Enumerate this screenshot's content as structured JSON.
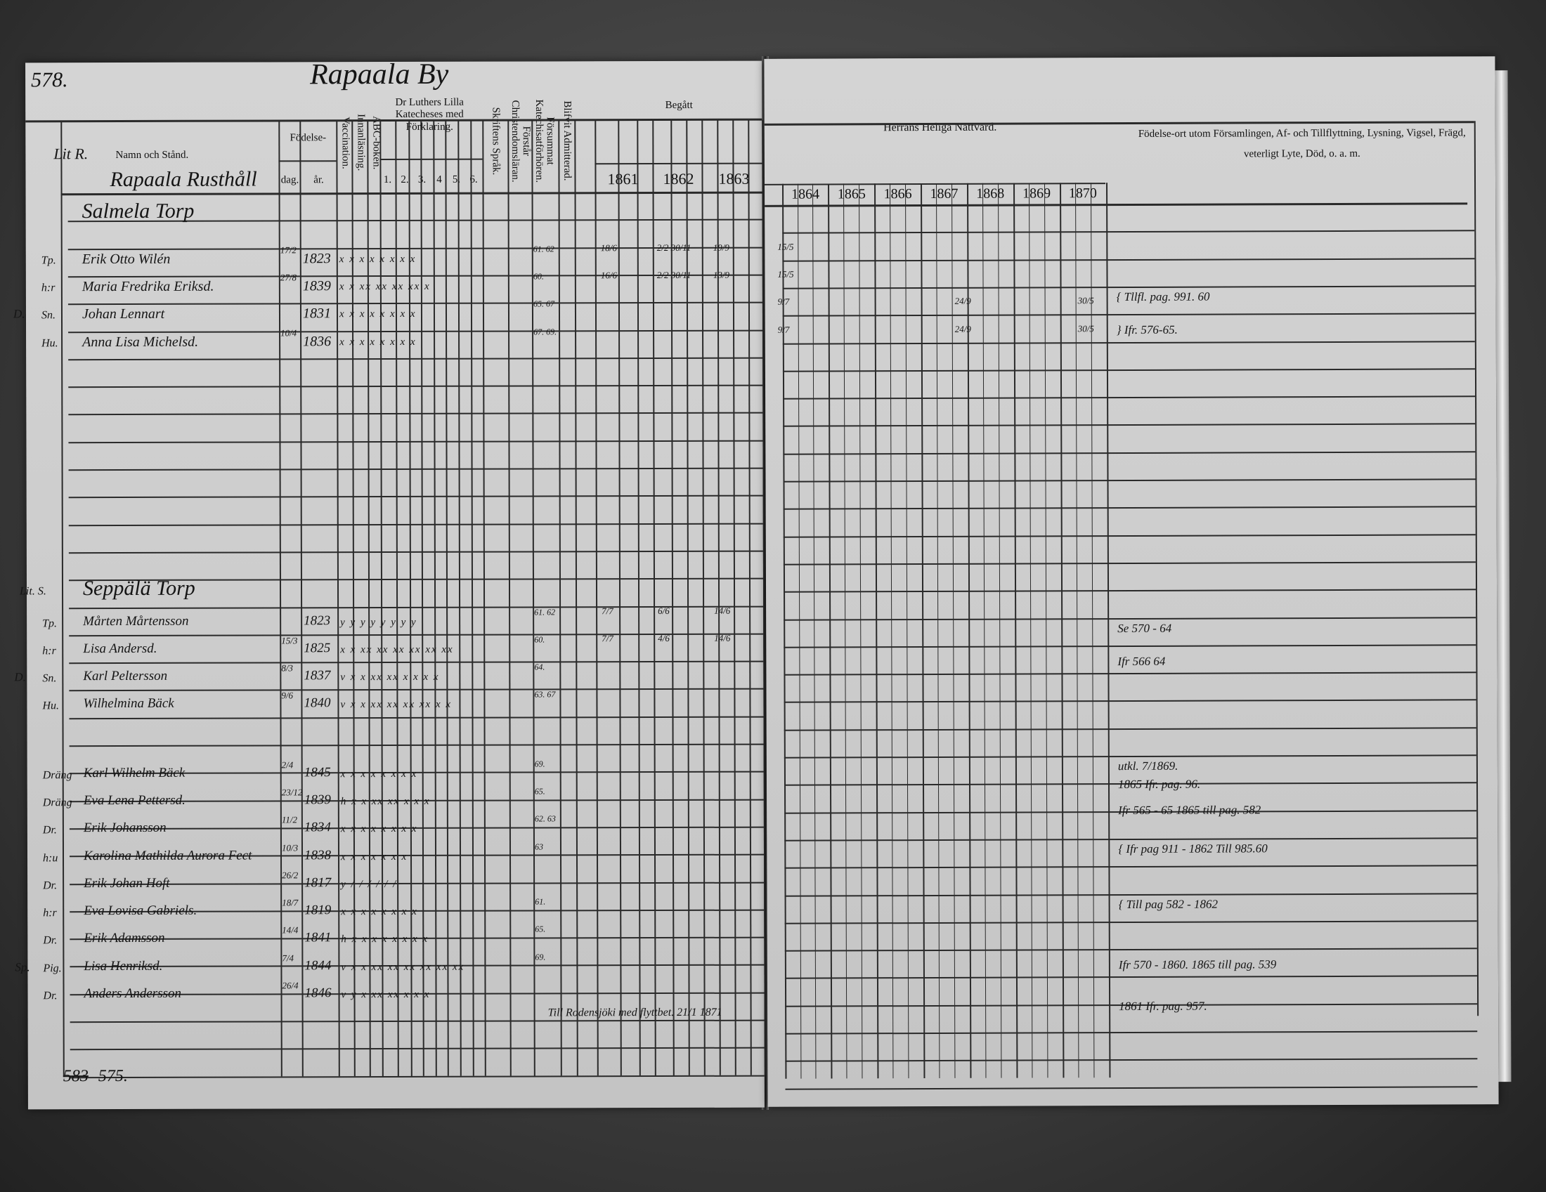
{
  "document": {
    "page_number": "578.",
    "village_title": "Rapaala By",
    "bottom_page_ref_struck": "583",
    "bottom_page_ref": "575."
  },
  "header_left": {
    "lit": "Lit R.",
    "name_column": "Namn och Stånd.",
    "birth_group": "Födelse-",
    "birth_day": "dag.",
    "birth_year": "år.",
    "vaccination": "Vaccination.",
    "reading": "Innanläsning.",
    "abc": "ABC-boken.",
    "catechism_group": "Dr Luthers Lilla Katecheses med Förklaring.",
    "catechism_parts": [
      "1.",
      "2.",
      "3.",
      "4",
      "5.",
      "6."
    ],
    "written_language": "Skriftens Språk.",
    "christian_doctrine": "Förstår Christendomsläran.",
    "missed_catechism": "Försummat Katechisatförhören.",
    "admitted": "Blifvit Admitterad.",
    "begatt": "Begått",
    "years": [
      "1861",
      "1862",
      "1863"
    ]
  },
  "header_right": {
    "communion": "Herrans Heliga Nattvard.",
    "years": [
      "1864",
      "1865",
      "1866",
      "1867",
      "1868",
      "1869",
      "1870"
    ],
    "remarks": "Födelse-ort utom Församlingen, Af- och Tillflyttning, Lysning, Vigsel, Frägd, veterligt Lyte, Död, o. a. m."
  },
  "sections": [
    {
      "title": "Rapaala Rusthåll"
    },
    {
      "title": "Salmela Torp"
    },
    {
      "title": "Seppälä Torp",
      "prefix": "Lit. S."
    }
  ],
  "entries_upper": [
    {
      "role": "Tp.",
      "name": "Erik Otto Wilén",
      "day": "17/2",
      "year": "1823",
      "marks": "x x x x x x x x",
      "missed": "61. 62",
      "begatt": [
        "18/6",
        "2/2  30/11",
        "19/9"
      ],
      "nattvard": [
        "15/5"
      ]
    },
    {
      "role": "h:r",
      "name": "Maria Fredrika Eriksd.",
      "day": "27/8",
      "year": "1839",
      "marks": "x x xx xx xx xx x",
      "missed": "60.",
      "begatt": [
        "16/6",
        "2/2  30/11",
        "13/9"
      ],
      "nattvard": [
        "15/5"
      ]
    },
    {
      "role": "Sn.",
      "name": "Johan Lennart",
      "day": "",
      "year": "1831",
      "marks": "x x x x x x x x",
      "missed": "65. 67",
      "prefix": "D.",
      "nattvard": [
        "9/7",
        "24/9",
        "30/5"
      ]
    },
    {
      "role": "Hu.",
      "name": "Anna Lisa Michelsd.",
      "day": "10/4",
      "year": "1836",
      "marks": "x x x x x x x x",
      "missed": "67. 69.",
      "nattvard": [
        "9/7",
        "24/9",
        "30/5"
      ]
    }
  ],
  "entries_lower": [
    {
      "role": "Tp.",
      "name": "Mårten Mårtensson",
      "day": "",
      "year": "1823",
      "marks": "y y y y y y y y",
      "missed": "61. 62",
      "begatt": [
        "7/7",
        "6/6",
        "14/6"
      ]
    },
    {
      "role": "h:r",
      "name": "Lisa Andersd.",
      "day": "15/3",
      "year": "1825",
      "marks": "x x xx xx xx xx xx xx",
      "missed": "60.",
      "begatt": [
        "7/7",
        "4/6",
        "14/6"
      ]
    },
    {
      "role": "Sn.",
      "name": "Karl Peltersson",
      "day": "8/3",
      "year": "1837",
      "marks": "v x x xx xx x x x x",
      "missed": "64.",
      "prefix": "D."
    },
    {
      "role": "Hu.",
      "name": "Wilhelmina Bäck",
      "day": "9/6",
      "year": "1840",
      "marks": "v x x xx xx xx xx x x",
      "missed": "63. 67"
    },
    {
      "role": "Dräng",
      "name": "Karl Wilhelm Bäck",
      "day": "2/4",
      "year": "1845",
      "marks": "x x x x x x x x",
      "missed": "69."
    },
    {
      "role": "Dräng",
      "name": "Eva Lena Pettersd.",
      "day": "23/12",
      "year": "1839",
      "marks": "h x x xx xx x x x",
      "missed": "65."
    },
    {
      "role": "Dr.",
      "name": "Erik Johansson",
      "day": "11/2",
      "year": "1834",
      "marks": "x x x x x x x x",
      "missed": "62. 63"
    },
    {
      "role": "h:u",
      "name": "Karolina Mathilda Aurora Fect",
      "day": "10/3",
      "year": "1838",
      "marks": "x x x x x x x",
      "missed": "63"
    },
    {
      "role": "Dr.",
      "name": "Erik Johan Hoft",
      "day": "26/2",
      "year": "1817",
      "marks": "y / / / / / /",
      "missed": ""
    },
    {
      "role": "h:r",
      "name": "Eva Lovisa Gabriels.",
      "day": "18/7",
      "year": "1819",
      "marks": "x x x x x x x x",
      "missed": "61."
    },
    {
      "role": "Dr.",
      "name": "Erik Adamsson",
      "day": "14/4",
      "year": "1841",
      "marks": "h x x x x x x x x",
      "missed": "65."
    },
    {
      "role": "Pig.",
      "name": "Lisa Henriksd.",
      "day": "7/4",
      "year": "1844",
      "marks": "v x x xx xx xx xx xx xx",
      "missed": "69.",
      "prefix": "Sp."
    },
    {
      "role": "Dr.",
      "name": "Anders Andersson",
      "day": "26/4",
      "year": "1846",
      "marks": "v y x xx xx x x x",
      "missed": ""
    }
  ],
  "remarks": [
    "{ Tllfl. pag. 991. 60",
    "} Ifr. 576-65.",
    "Se 570 - 64",
    "Ifr 566 64",
    "utkl. 7/1869.",
    "1865 Ifr. pag. 96.",
    "Ifr 565 - 65   1865 till pag. 582",
    "{ Ifr pag 911 - 1862   Till 985.60",
    "{ Till pag 582 - 1862",
    "Ifr 570 - 1860.  1865 till pag. 539",
    "1861 Ifr. pag. 957.",
    "Till Rodensjöki med flyttbet. 21/1 1871"
  ],
  "colors": {
    "paper": "#cfcfcf",
    "ink": "#151515",
    "background": "#3a3a3a"
  }
}
